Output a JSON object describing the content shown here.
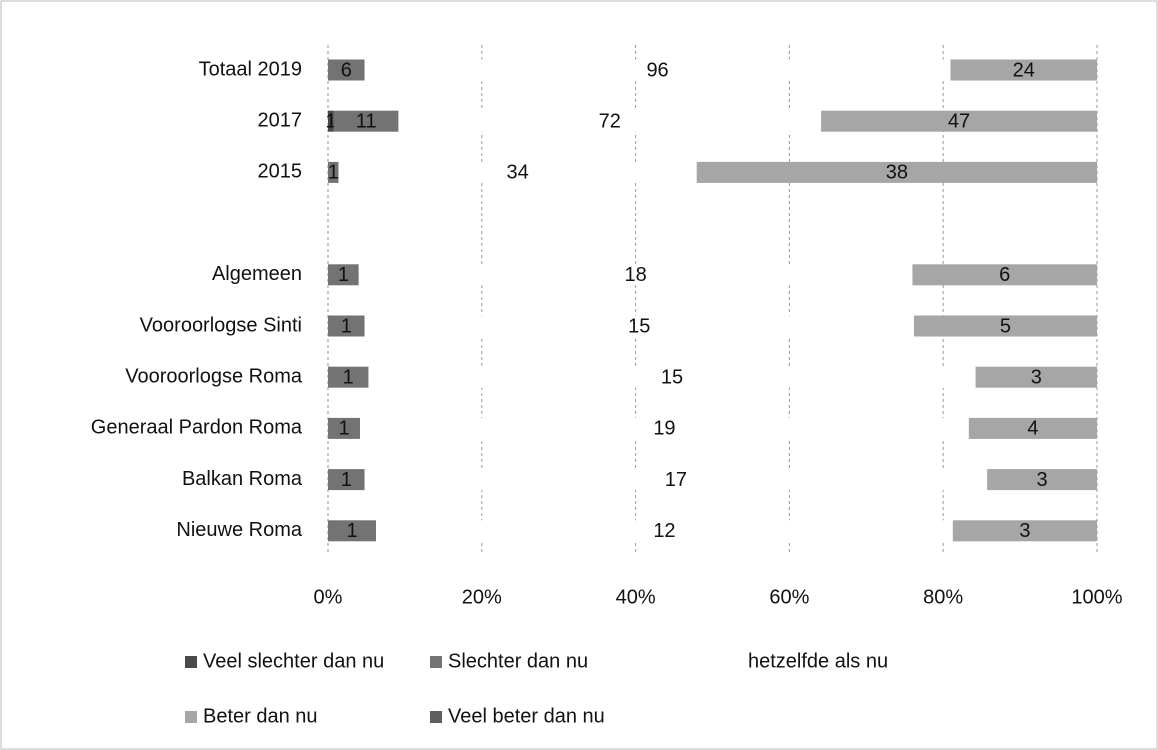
{
  "chart_data": {
    "type": "stacked_bar_100",
    "categories": [
      "Totaal 2019",
      "2017",
      "2015",
      null,
      "Algemeen",
      "Vooroorlogse Sinti",
      "Vooroorlogse Roma",
      "Generaal Pardon Roma",
      "Balkan Roma",
      "Nieuwe Roma"
    ],
    "series": [
      {
        "name": "Veel slechter dan nu",
        "color": "#4a4a4a",
        "values": [
          0,
          1,
          0,
          null,
          0,
          0,
          0,
          0,
          0,
          0
        ]
      },
      {
        "name": "Slechter dan nu",
        "color": "#737373",
        "values": [
          6,
          11,
          1,
          null,
          1,
          1,
          1,
          1,
          1,
          1
        ]
      },
      {
        "name": "hetzelfde als nu",
        "color": "#ffffff",
        "values": [
          96,
          72,
          34,
          null,
          18,
          15,
          15,
          19,
          17,
          12
        ]
      },
      {
        "name": "Beter dan nu",
        "color": "#a6a6a6",
        "values": [
          24,
          47,
          38,
          null,
          6,
          5,
          3,
          4,
          3,
          3
        ]
      },
      {
        "name": "Veel beter dan nu",
        "color": "#5e5e5e",
        "values": [
          0,
          0,
          0,
          null,
          0,
          0,
          0,
          0,
          0,
          0
        ]
      }
    ],
    "xlim": [
      0,
      100
    ],
    "xticks": [
      {
        "value": 0,
        "label": "0%"
      },
      {
        "value": 20,
        "label": "20%"
      },
      {
        "value": 40,
        "label": "40%"
      },
      {
        "value": 60,
        "label": "60%"
      },
      {
        "value": 80,
        "label": "80%"
      },
      {
        "value": 100,
        "label": "100%"
      }
    ],
    "grid": true,
    "legend": "bottom"
  }
}
